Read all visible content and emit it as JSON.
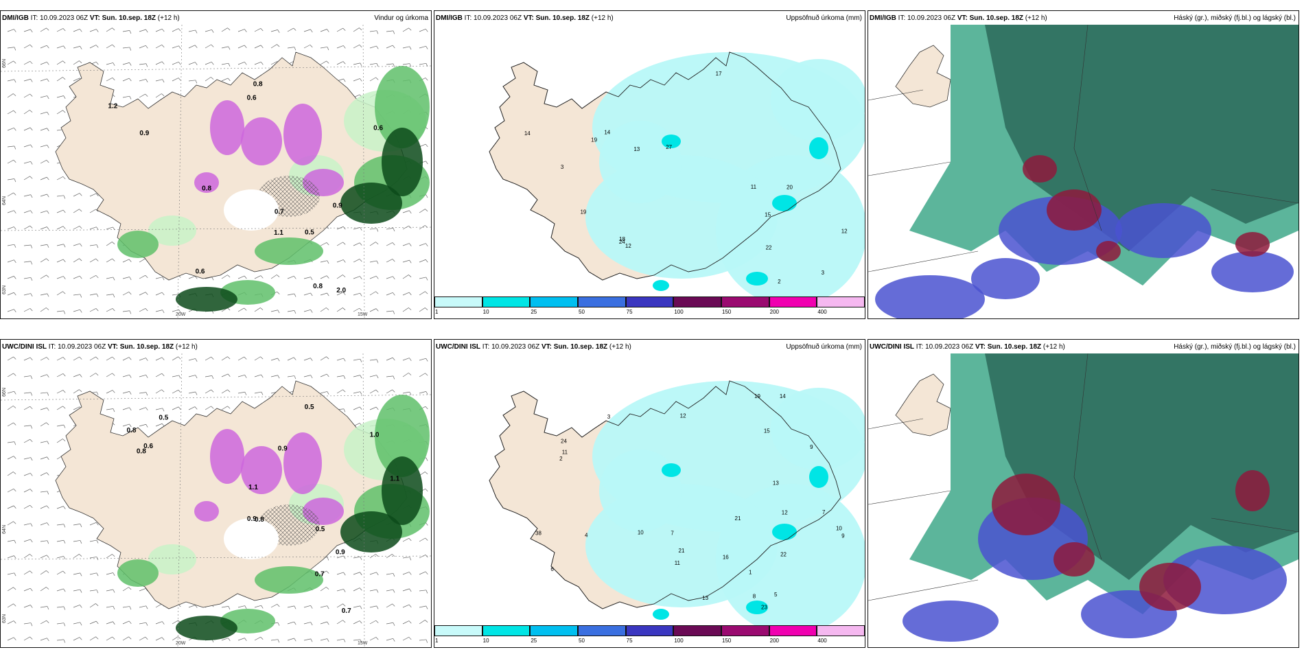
{
  "panels": [
    {
      "model": "DMI/IGB",
      "it_label": "IT: 10.09.2023 06Z",
      "vt_label": "VT: Sun. 10.sep. 18Z",
      "lead": "(+12 h)",
      "product": "Vindur og úrkoma",
      "type": "wind"
    },
    {
      "model": "DMI/IGB",
      "it_label": "IT: 10.09.2023 06Z",
      "vt_label": "VT: Sun. 10.sep. 18Z",
      "lead": "(+12 h)",
      "product": "Uppsöfnuð úrkoma (mm)",
      "type": "precip"
    },
    {
      "model": "DMI/IGB",
      "it_label": "IT: 10.09.2023 06Z",
      "vt_label": "VT: Sun. 10.sep. 18Z",
      "lead": "(+12 h)",
      "product": "Háský (gr.), miðský (fj.bl.) og lágský (bl.)",
      "type": "cloud"
    },
    {
      "model": "UWC/DINI ISL",
      "it_label": "IT: 10.09.2023 06Z",
      "vt_label": "VT: Sun. 10.sep. 18Z",
      "lead": "(+12 h)",
      "product": "",
      "type": "wind"
    },
    {
      "model": "UWC/DINI ISL",
      "it_label": "IT: 10.09.2023 06Z",
      "vt_label": "VT: Sun. 10.sep. 18Z",
      "lead": "(+12 h)",
      "product": "Uppsöfnuð úrkoma (mm)",
      "type": "precip"
    },
    {
      "model": "UWC/DINI ISL",
      "it_label": "IT: 10.09.2023 06Z",
      "vt_label": "VT: Sun. 10.sep. 18Z",
      "lead": "(+12 h)",
      "product": "Háský (gr.), miðský (fj.bl.) og lágský (bl.)",
      "type": "cloud"
    }
  ],
  "axis_ticks": {
    "lon_20": "20W",
    "lon_15": "15W",
    "lat_66": "66N",
    "lat_64": "64N",
    "lat_63": "63N"
  },
  "colorbar": {
    "labels": [
      "1",
      "10",
      "25",
      "50",
      "75",
      "100",
      "150",
      "200",
      "400"
    ],
    "colors": [
      "#c8fafa",
      "#00e5e5",
      "#00bff0",
      "#3a6fe0",
      "#3a36c0",
      "#6a0a55",
      "#9a0a70",
      "#f000b0",
      "#f5b8f0"
    ]
  },
  "wind_values_dmi": [
    "0.7",
    "0.9",
    "0.6",
    "0.8",
    "1.1",
    "0.8",
    "0.6",
    "0.5",
    "1.2",
    "0.8",
    "0.9",
    "2.0",
    "0.6"
  ],
  "precip_values_dmi": [
    "19",
    "18",
    "13",
    "14",
    "3",
    "14",
    "12",
    "12",
    "19",
    "11",
    "20",
    "24",
    "22",
    "15",
    "17",
    "2",
    "3",
    "27"
  ],
  "wind_values_uwc": [
    "1.1",
    "0.5",
    "0.7",
    "0.9",
    "0.8",
    "0.5",
    "1.0",
    "0.8",
    "0.9",
    "0.8",
    "0.6",
    "0.7",
    "0.5",
    "1.1",
    "0.9"
  ],
  "precip_values_uwc": [
    "8",
    "12",
    "11",
    "10",
    "21",
    "14",
    "13",
    "12",
    "9",
    "7",
    "5",
    "6",
    "10",
    "15",
    "19",
    "22",
    "38",
    "24",
    "11",
    "9",
    "16",
    "21",
    "7",
    "13",
    "23",
    "4",
    "3",
    "1",
    "2"
  ],
  "colors": {
    "land": "#f4e6d6",
    "rain_light": "#c8f2c8",
    "rain_green": "#5fbf6a",
    "rain_dark": "#0c4a1a",
    "rain_purple": "#cc66dd",
    "precip_cyan": "#b8f8f8",
    "precip_aqua": "#00e5e5",
    "cloud_dark": "#2f6e5e",
    "cloud_teal": "#3fa88a",
    "cloud_blue": "#4a52d0",
    "cloud_red": "#8e1a3c"
  }
}
